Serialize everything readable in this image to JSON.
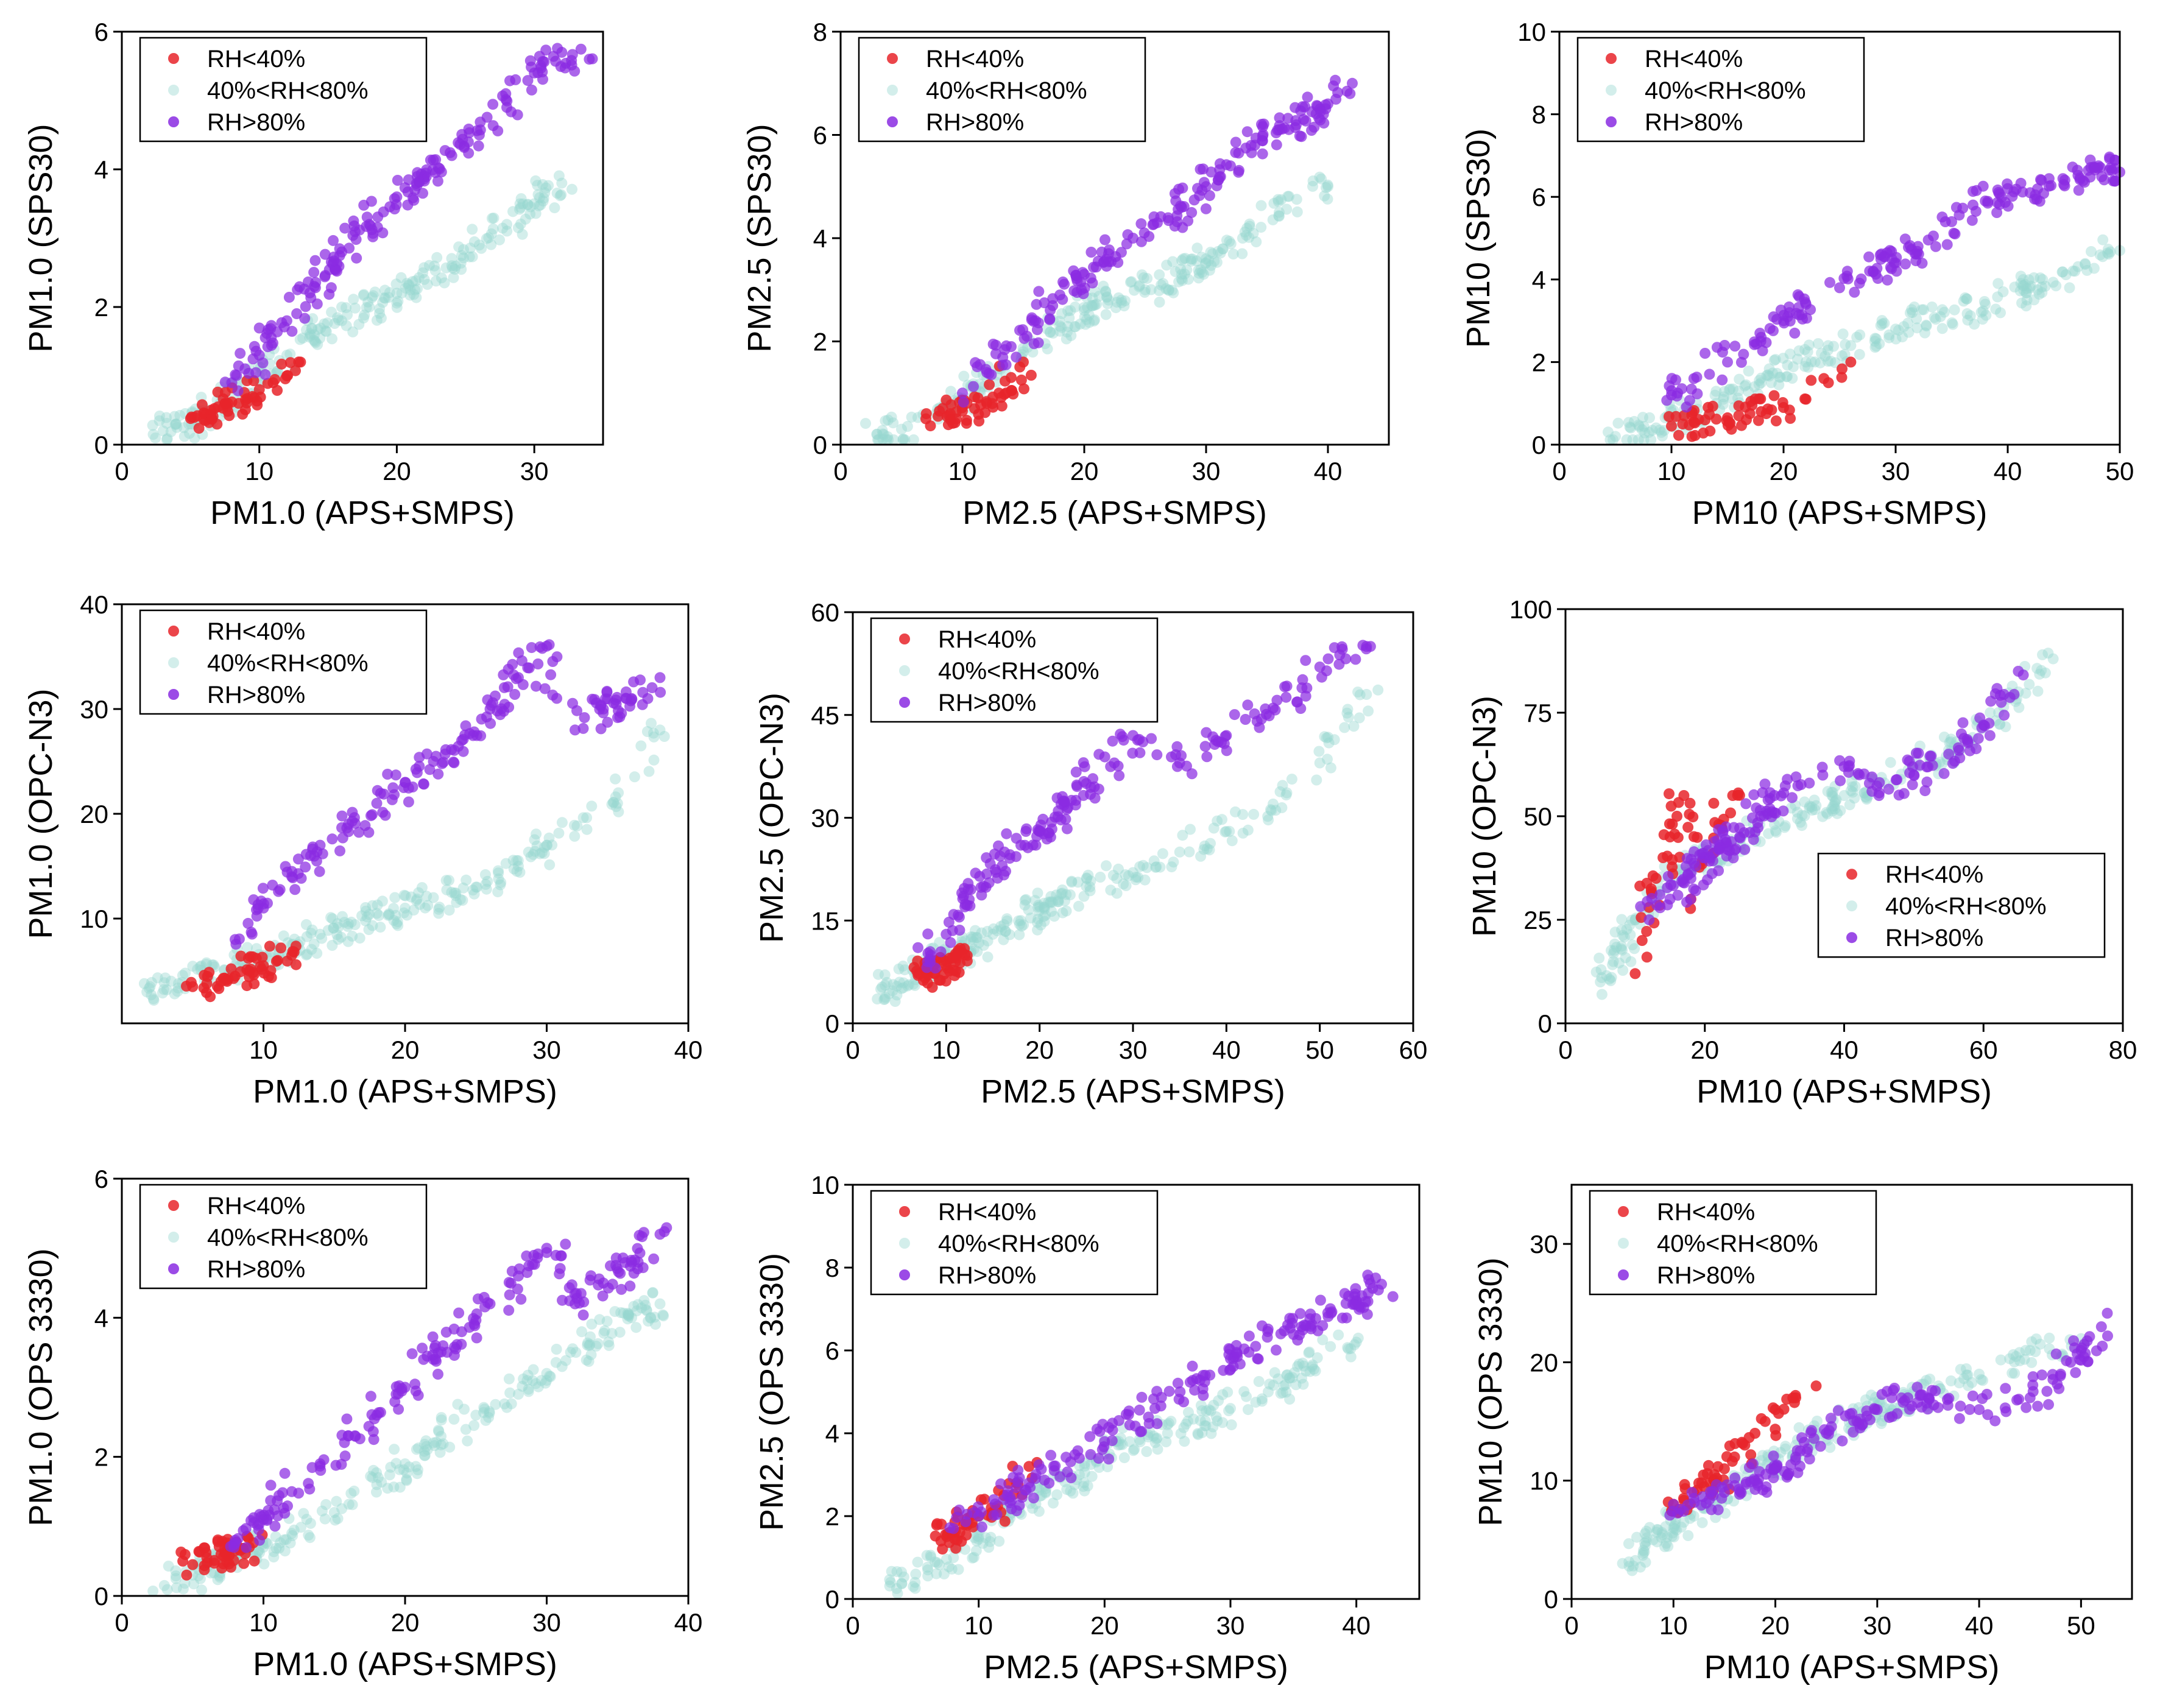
{
  "colors": {
    "low": "#e8242a",
    "mid": "#96d6d0",
    "high": "#8a2be2"
  },
  "legend_labels": [
    "RH<40%",
    "40%<RH<80%",
    "RH>80%"
  ],
  "chart_data": [
    {
      "type": "scatter",
      "xlabel": "PM1.0 (APS+SMPS)",
      "ylabel": "PM1.0 (SPS30)",
      "xlim": [
        0,
        35
      ],
      "ylim": [
        0,
        6
      ],
      "xticks": [
        0,
        10,
        20,
        30
      ],
      "yticks": [
        0,
        2,
        4,
        6
      ],
      "legend": "top-left",
      "series": [
        {
          "name": "RH<40%",
          "x": [
            5,
            5.5,
            6,
            6.5,
            7,
            7.5,
            8,
            8.5,
            9,
            9.5,
            10,
            11,
            12,
            13
          ],
          "y": [
            0.38,
            0.42,
            0.45,
            0.5,
            0.55,
            0.6,
            0.62,
            0.6,
            0.65,
            0.7,
            0.8,
            0.9,
            1.0,
            1.2
          ]
        },
        {
          "name": "40%<RH<80%",
          "x": [
            3,
            4,
            6,
            8,
            10,
            12,
            14,
            16,
            18,
            20,
            22,
            24,
            26,
            28,
            30,
            32
          ],
          "y": [
            0.2,
            0.25,
            0.45,
            0.7,
            1.0,
            1.3,
            1.6,
            1.8,
            2.0,
            2.2,
            2.4,
            2.6,
            2.9,
            3.2,
            3.5,
            3.8
          ]
        },
        {
          "name": "RH>80%",
          "x": [
            8,
            10,
            12,
            14,
            16,
            18,
            20,
            22,
            24,
            26,
            28,
            30,
            32,
            34
          ],
          "y": [
            0.9,
            1.3,
            1.8,
            2.3,
            2.8,
            3.2,
            3.6,
            3.9,
            4.2,
            4.5,
            4.9,
            5.4,
            5.7,
            5.6
          ]
        }
      ]
    },
    {
      "type": "scatter",
      "xlabel": "PM2.5 (APS+SMPS)",
      "ylabel": "PM2.5 (SPS30)",
      "xlim": [
        0,
        45
      ],
      "ylim": [
        0,
        8
      ],
      "xticks": [
        0,
        10,
        20,
        30,
        40
      ],
      "yticks": [
        0,
        2,
        4,
        6,
        8
      ],
      "legend": "top-left",
      "series": [
        {
          "name": "RH<40%",
          "x": [
            7,
            8,
            9,
            10,
            11,
            12,
            13,
            14,
            15
          ],
          "y": [
            0.5,
            0.55,
            0.6,
            0.65,
            0.7,
            0.8,
            1.0,
            1.3,
            1.6
          ]
        },
        {
          "name": "40%<RH<80%",
          "x": [
            3,
            5,
            8,
            10,
            12,
            15,
            18,
            20,
            22,
            25,
            28,
            30,
            33,
            36,
            40
          ],
          "y": [
            0.2,
            0.3,
            0.6,
            0.9,
            1.3,
            1.8,
            2.3,
            2.6,
            2.8,
            3.0,
            3.3,
            3.6,
            4.0,
            4.5,
            5.0
          ]
        },
        {
          "name": "RH>80%",
          "x": [
            10,
            12,
            14,
            16,
            18,
            20,
            22,
            24,
            26,
            28,
            30,
            32,
            34,
            36,
            38,
            40,
            42
          ],
          "y": [
            1.0,
            1.4,
            1.9,
            2.4,
            2.9,
            3.3,
            3.7,
            4.0,
            4.3,
            4.6,
            5.0,
            5.4,
            5.8,
            6.1,
            6.3,
            6.6,
            7.0
          ]
        }
      ]
    },
    {
      "type": "scatter",
      "xlabel": "PM10 (APS+SMPS)",
      "ylabel": "PM10 (SPS30)",
      "xlim": [
        0,
        50
      ],
      "ylim": [
        0,
        10
      ],
      "xticks": [
        0,
        10,
        20,
        30,
        40,
        50
      ],
      "yticks": [
        0,
        2,
        4,
        6,
        8,
        10
      ],
      "legend": "top-left",
      "series": [
        {
          "name": "RH<40%",
          "x": [
            10,
            11,
            12,
            13,
            14,
            15,
            16,
            17,
            18,
            20,
            22,
            24,
            26
          ],
          "y": [
            0.45,
            0.5,
            0.55,
            0.6,
            0.62,
            0.65,
            0.7,
            0.75,
            0.8,
            0.9,
            1.1,
            1.5,
            2.0
          ]
        },
        {
          "name": "40%<RH<80%",
          "x": [
            5,
            8,
            10,
            14,
            18,
            22,
            26,
            30,
            34,
            38,
            42,
            46,
            50
          ],
          "y": [
            0.2,
            0.3,
            0.6,
            1.0,
            1.5,
            2.0,
            2.4,
            2.8,
            3.1,
            3.4,
            3.8,
            4.2,
            4.7
          ]
        },
        {
          "name": "RH>80%",
          "x": [
            10,
            12,
            15,
            18,
            20,
            22,
            25,
            28,
            30,
            32,
            35,
            38,
            40,
            42,
            45,
            48,
            50
          ],
          "y": [
            1.2,
            1.6,
            2.0,
            2.6,
            3.0,
            3.4,
            3.8,
            4.2,
            4.4,
            4.8,
            5.4,
            5.9,
            6.2,
            6.1,
            6.3,
            6.7,
            6.6
          ]
        }
      ]
    },
    {
      "type": "scatter",
      "xlabel": "PM1.0 (APS+SMPS)",
      "ylabel": "PM1.0 (OPC-N3)",
      "xlim": [
        0,
        40
      ],
      "ylim": [
        0,
        40
      ],
      "xticks": [
        10,
        20,
        30,
        40
      ],
      "yticks": [
        10,
        20,
        30,
        40
      ],
      "legend": "top-left",
      "series": [
        {
          "name": "RH<40%",
          "x": [
            5,
            6,
            7,
            8,
            9,
            10,
            11,
            12
          ],
          "y": [
            3.5,
            3.8,
            4.0,
            4.5,
            5.0,
            5.5,
            6.0,
            6.5
          ]
        },
        {
          "name": "40%<RH<80%",
          "x": [
            2,
            4,
            6,
            8,
            10,
            12,
            14,
            16,
            18,
            20,
            22,
            25,
            28,
            30,
            35,
            38
          ],
          "y": [
            3.5,
            3.8,
            4.5,
            5.5,
            6.5,
            7.5,
            8.5,
            9.5,
            10.5,
            11,
            12,
            13,
            15,
            17,
            21,
            28
          ]
        },
        {
          "name": "RH>80%",
          "x": [
            8,
            10,
            12,
            14,
            16,
            18,
            20,
            22,
            24,
            26,
            28,
            30,
            32,
            34,
            36,
            38
          ],
          "y": [
            8,
            11,
            14,
            17,
            19,
            21,
            23,
            25,
            27,
            30,
            33,
            36,
            28,
            30,
            31,
            33
          ]
        }
      ]
    },
    {
      "type": "scatter",
      "xlabel": "PM2.5 (APS+SMPS)",
      "ylabel": "PM2.5 (OPC-N3)",
      "xlim": [
        0,
        60
      ],
      "ylim": [
        0,
        60
      ],
      "xticks": [
        0,
        10,
        20,
        30,
        40,
        50,
        60
      ],
      "yticks": [
        0,
        15,
        30,
        45,
        60
      ],
      "legend": "top-left",
      "series": [
        {
          "name": "RH<40%",
          "x": [
            7,
            8,
            9,
            10,
            11,
            12
          ],
          "y": [
            7,
            7.5,
            8,
            8.5,
            9,
            10
          ]
        },
        {
          "name": "40%<RH<80%",
          "x": [
            3,
            5,
            8,
            10,
            12,
            15,
            18,
            20,
            22,
            25,
            30,
            35,
            40,
            45,
            50,
            55
          ],
          "y": [
            5,
            6,
            8,
            10,
            11,
            13,
            15,
            17,
            18,
            20,
            22,
            25,
            28,
            32,
            38,
            48
          ]
        },
        {
          "name": "RH>80%",
          "x": [
            8,
            10,
            12,
            14,
            16,
            18,
            20,
            22,
            25,
            28,
            30,
            35,
            40,
            45,
            50,
            55
          ],
          "y": [
            9,
            13,
            17,
            20,
            23,
            26,
            28,
            31,
            35,
            38,
            42,
            38,
            42,
            46,
            52,
            55
          ]
        }
      ]
    },
    {
      "type": "scatter",
      "xlabel": "PM10 (APS+SMPS)",
      "ylabel": "PM10 (OPC-N3)",
      "xlim": [
        0,
        80
      ],
      "ylim": [
        0,
        100
      ],
      "xticks": [
        0,
        20,
        40,
        60,
        80
      ],
      "yticks": [
        0,
        25,
        50,
        75,
        100
      ],
      "legend": "center-right",
      "series": [
        {
          "name": "RH<40%",
          "x": [
            10,
            11,
            12,
            13,
            14,
            15,
            16,
            17,
            18,
            20,
            22,
            24
          ],
          "y": [
            12,
            20,
            28,
            35,
            40,
            45,
            50,
            55,
            30,
            40,
            48,
            55
          ]
        },
        {
          "name": "40%<RH<80%",
          "x": [
            5,
            8,
            10,
            15,
            20,
            25,
            30,
            35,
            40,
            45,
            50,
            55,
            60,
            65,
            70
          ],
          "y": [
            10,
            18,
            25,
            35,
            40,
            45,
            48,
            52,
            55,
            58,
            62,
            66,
            72,
            80,
            88
          ]
        },
        {
          "name": "RH>80%",
          "x": [
            12,
            15,
            18,
            20,
            22,
            25,
            28,
            30,
            35,
            40,
            45,
            50,
            55,
            60,
            65
          ],
          "y": [
            25,
            30,
            35,
            40,
            42,
            45,
            50,
            55,
            58,
            62,
            55,
            60,
            65,
            72,
            85
          ]
        }
      ]
    },
    {
      "type": "scatter",
      "xlabel": "PM1.0 (APS+SMPS)",
      "ylabel": "PM1.0 (OPS 3330)",
      "xlim": [
        0,
        40
      ],
      "ylim": [
        0,
        6
      ],
      "xticks": [
        0,
        10,
        20,
        30,
        40
      ],
      "yticks": [
        0,
        2,
        4,
        6
      ],
      "legend": "top-left",
      "series": [
        {
          "name": "RH<40%",
          "x": [
            5,
            6,
            7,
            8,
            9
          ],
          "y": [
            0.45,
            0.55,
            0.6,
            0.65,
            0.7
          ]
        },
        {
          "name": "40%<RH<80%",
          "x": [
            3,
            5,
            8,
            10,
            12,
            15,
            18,
            20,
            22,
            25,
            28,
            30,
            33,
            36,
            38
          ],
          "y": [
            0.15,
            0.3,
            0.5,
            0.7,
            0.9,
            1.2,
            1.6,
            1.9,
            2.2,
            2.6,
            2.9,
            3.2,
            3.6,
            4.0,
            4.2
          ]
        },
        {
          "name": "RH>80%",
          "x": [
            8,
            10,
            12,
            14,
            16,
            18,
            20,
            22,
            24,
            26,
            28,
            30,
            32,
            34,
            36,
            38
          ],
          "y": [
            0.8,
            1.1,
            1.5,
            1.9,
            2.3,
            2.6,
            3.0,
            3.4,
            3.8,
            4.2,
            4.6,
            5.0,
            4.2,
            4.5,
            4.8,
            5.2
          ]
        }
      ]
    },
    {
      "type": "scatter",
      "xlabel": "PM2.5 (APS+SMPS)",
      "ylabel": "PM2.5 (OPS 3330)",
      "xlim": [
        0,
        45
      ],
      "ylim": [
        0,
        10
      ],
      "xticks": [
        0,
        10,
        20,
        30,
        40
      ],
      "yticks": [
        0,
        2,
        4,
        6,
        8,
        10
      ],
      "legend": "top-left",
      "series": [
        {
          "name": "RH<40%",
          "x": [
            7,
            8,
            9,
            10,
            11,
            12,
            13,
            14
          ],
          "y": [
            1.4,
            1.6,
            1.8,
            2.0,
            2.2,
            2.5,
            2.8,
            3.2
          ]
        },
        {
          "name": "40%<RH<80%",
          "x": [
            3,
            5,
            8,
            10,
            12,
            15,
            18,
            20,
            22,
            25,
            28,
            30,
            33,
            36,
            40
          ],
          "y": [
            0.4,
            0.6,
            1.0,
            1.5,
            2.0,
            2.5,
            3.0,
            3.5,
            3.8,
            4.0,
            4.3,
            4.6,
            5.0,
            5.5,
            6.2
          ]
        },
        {
          "name": "RH>80%",
          "x": [
            8,
            10,
            12,
            14,
            16,
            18,
            20,
            22,
            24,
            26,
            28,
            30,
            32,
            34,
            36,
            38,
            40,
            42
          ],
          "y": [
            1.7,
            2.0,
            2.4,
            2.8,
            3.1,
            3.4,
            3.8,
            4.2,
            4.6,
            5.0,
            5.4,
            5.8,
            6.1,
            6.4,
            6.6,
            6.9,
            7.2,
            7.6
          ]
        }
      ]
    },
    {
      "type": "scatter",
      "xlabel": "PM10 (APS+SMPS)",
      "ylabel": "PM10 (OPS 3330)",
      "xlim": [
        0,
        55
      ],
      "ylim": [
        0,
        35
      ],
      "xticks": [
        0,
        10,
        20,
        30,
        40,
        50
      ],
      "yticks": [
        0,
        10,
        20,
        30
      ],
      "legend": "top-left",
      "series": [
        {
          "name": "RH<40%",
          "x": [
            10,
            11,
            12,
            13,
            14,
            15,
            16,
            17,
            18,
            19,
            20,
            22,
            24
          ],
          "y": [
            8,
            8.5,
            9,
            9.5,
            10,
            11,
            12,
            13,
            14,
            15,
            16,
            17,
            18
          ]
        },
        {
          "name": "40%<RH<80%",
          "x": [
            5,
            8,
            10,
            12,
            15,
            18,
            20,
            22,
            25,
            28,
            30,
            33,
            36,
            40,
            45,
            50
          ],
          "y": [
            3,
            5,
            6,
            7,
            9,
            11,
            12,
            13,
            14,
            15,
            16,
            17,
            18,
            19,
            21,
            22
          ]
        },
        {
          "name": "RH>80%",
          "x": [
            10,
            12,
            15,
            18,
            20,
            22,
            25,
            28,
            30,
            33,
            35,
            40,
            45,
            48,
            50,
            52
          ],
          "y": [
            8,
            8.5,
            9,
            10,
            11,
            12,
            14,
            15,
            16,
            17,
            17,
            16,
            17,
            19,
            21,
            23
          ]
        }
      ]
    }
  ]
}
